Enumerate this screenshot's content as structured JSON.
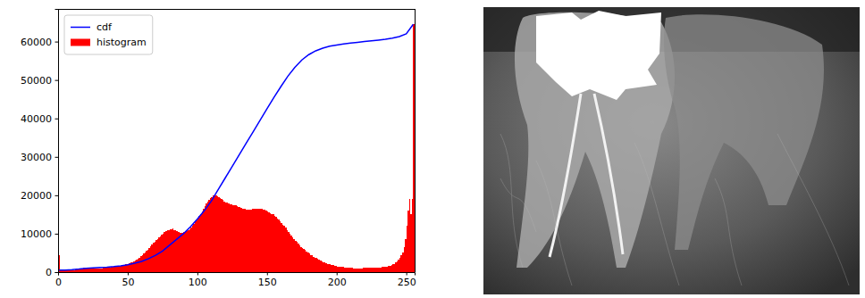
{
  "chart_data": {
    "type": "histogram",
    "xlim": [
      0,
      256
    ],
    "ylim": [
      0,
      68500
    ],
    "xticks": [
      0,
      50,
      100,
      150,
      200,
      250
    ],
    "yticks": [
      0,
      10000,
      20000,
      30000,
      40000,
      50000,
      60000
    ],
    "legend": "upper left",
    "series": [
      {
        "name": "cdf",
        "type": "line",
        "color": "#0000ff",
        "x": [
          0,
          5,
          10,
          15,
          20,
          25,
          30,
          35,
          40,
          45,
          50,
          55,
          60,
          65,
          70,
          75,
          80,
          85,
          90,
          95,
          100,
          105,
          110,
          115,
          120,
          125,
          130,
          135,
          140,
          145,
          150,
          155,
          160,
          165,
          170,
          175,
          180,
          185,
          190,
          195,
          200,
          205,
          210,
          215,
          220,
          225,
          230,
          235,
          240,
          245,
          250,
          255
        ],
        "values": [
          500,
          550,
          650,
          800,
          1000,
          1100,
          1200,
          1300,
          1450,
          1650,
          1900,
          2300,
          2800,
          3500,
          4400,
          5500,
          7000,
          8500,
          10000,
          11800,
          13800,
          16000,
          18500,
          21500,
          24500,
          27500,
          30500,
          33500,
          36500,
          39500,
          42500,
          45500,
          48300,
          51000,
          53300,
          55200,
          56600,
          57600,
          58300,
          58800,
          59100,
          59400,
          59600,
          59800,
          60000,
          60200,
          60400,
          60600,
          60900,
          61300,
          62000,
          64500
        ]
      },
      {
        "name": "histogram",
        "type": "bar",
        "color": "#ff0000",
        "bins": [
          0,
          1,
          2,
          3,
          4,
          5,
          6,
          7,
          8,
          9,
          10,
          11,
          12,
          13,
          14,
          15,
          16,
          17,
          18,
          19,
          20,
          21,
          22,
          23,
          24,
          25,
          26,
          27,
          28,
          29,
          30,
          31,
          32,
          33,
          34,
          35,
          36,
          37,
          38,
          39,
          40,
          41,
          42,
          43,
          44,
          45,
          46,
          47,
          48,
          49,
          50,
          51,
          52,
          53,
          54,
          55,
          56,
          57,
          58,
          59,
          60,
          61,
          62,
          63,
          64,
          65,
          66,
          67,
          68,
          69,
          70,
          71,
          72,
          73,
          74,
          75,
          76,
          77,
          78,
          79,
          80,
          81,
          82,
          83,
          84,
          85,
          86,
          87,
          88,
          89,
          90,
          91,
          92,
          93,
          94,
          95,
          96,
          97,
          98,
          99,
          100,
          101,
          102,
          103,
          104,
          105,
          106,
          107,
          108,
          109,
          110,
          111,
          112,
          113,
          114,
          115,
          116,
          117,
          118,
          119,
          120,
          121,
          122,
          123,
          124,
          125,
          126,
          127,
          128,
          129,
          130,
          131,
          132,
          133,
          134,
          135,
          136,
          137,
          138,
          139,
          140,
          141,
          142,
          143,
          144,
          145,
          146,
          147,
          148,
          149,
          150,
          151,
          152,
          153,
          154,
          155,
          156,
          157,
          158,
          159,
          160,
          161,
          162,
          163,
          164,
          165,
          166,
          167,
          168,
          169,
          170,
          171,
          172,
          173,
          174,
          175,
          176,
          177,
          178,
          179,
          180,
          181,
          182,
          183,
          184,
          185,
          186,
          187,
          188,
          189,
          190,
          191,
          192,
          193,
          194,
          195,
          196,
          197,
          198,
          199,
          200,
          201,
          202,
          203,
          204,
          205,
          206,
          207,
          208,
          209,
          210,
          211,
          212,
          213,
          214,
          215,
          216,
          217,
          218,
          219,
          220,
          221,
          222,
          223,
          224,
          225,
          226,
          227,
          228,
          229,
          230,
          231,
          232,
          233,
          234,
          235,
          236,
          237,
          238,
          239,
          240,
          241,
          242,
          243,
          244,
          245,
          246,
          247,
          248,
          249,
          250,
          251,
          252,
          253,
          254,
          255,
          256
        ],
        "values": [
          4500,
          500,
          400,
          400,
          450,
          400,
          450,
          500,
          450,
          500,
          500,
          550,
          600,
          600,
          700,
          800,
          900,
          1000,
          1050,
          1100,
          1100,
          1050,
          1000,
          950,
          900,
          900,
          850,
          900,
          900,
          950,
          1000,
          1000,
          1050,
          1100,
          1100,
          1150,
          1200,
          1250,
          1300,
          1350,
          1400,
          1450,
          1500,
          1550,
          1650,
          1700,
          1800,
          1900,
          2000,
          2100,
          2200,
          2300,
          2450,
          2600,
          2800,
          3000,
          3200,
          3500,
          3800,
          4100,
          4400,
          4800,
          5100,
          5500,
          5900,
          6300,
          6800,
          7200,
          7600,
          8000,
          8300,
          8700,
          9000,
          9400,
          9800,
          10100,
          10400,
          10700,
          10900,
          11000,
          11200,
          11100,
          11300,
          11000,
          10800,
          10600,
          10400,
          10300,
          10200,
          10300,
          10400,
          10500,
          10700,
          10900,
          11200,
          11600,
          12000,
          12500,
          13000,
          13500,
          14000,
          14600,
          15200,
          15800,
          16500,
          17200,
          17800,
          18400,
          18900,
          19300,
          19600,
          19900,
          20100,
          20000,
          19800,
          19600,
          19300,
          19000,
          18700,
          18400,
          18200,
          18000,
          17800,
          17700,
          17600,
          17500,
          17400,
          17300,
          17200,
          17000,
          16900,
          16800,
          16600,
          16500,
          16400,
          16300,
          16300,
          16200,
          16300,
          16400,
          16400,
          16500,
          16500,
          16600,
          16500,
          16500,
          16400,
          16300,
          16200,
          16000,
          15800,
          15600,
          15400,
          15200,
          15000,
          14700,
          14400,
          14000,
          13600,
          13200,
          12800,
          12400,
          12000,
          11500,
          11000,
          10500,
          10000,
          9500,
          9000,
          8600,
          8200,
          7800,
          7400,
          7000,
          6600,
          6300,
          6000,
          5700,
          5400,
          5100,
          4800,
          4500,
          4300,
          4000,
          3800,
          3600,
          3400,
          3200,
          3000,
          2800,
          2600,
          2500,
          2300,
          2200,
          2100,
          2000,
          1900,
          1800,
          1700,
          1600,
          1500,
          1450,
          1400,
          1350,
          1300,
          1250,
          1200,
          1150,
          1100,
          1100,
          1050,
          1050,
          1000,
          1000,
          1000,
          1000,
          1000,
          1000,
          1000,
          1050,
          1050,
          1050,
          1100,
          1100,
          1100,
          1100,
          1150,
          1150,
          1200,
          1200,
          1250,
          1250,
          1300,
          1350,
          1400,
          1450,
          1500,
          1600,
          1700,
          1850,
          2000,
          2200,
          2500,
          2800,
          3200,
          3700,
          4300,
          5200,
          6500,
          8500,
          12000,
          16000,
          19000,
          15000,
          19000,
          64500
        ]
      }
    ]
  }
}
